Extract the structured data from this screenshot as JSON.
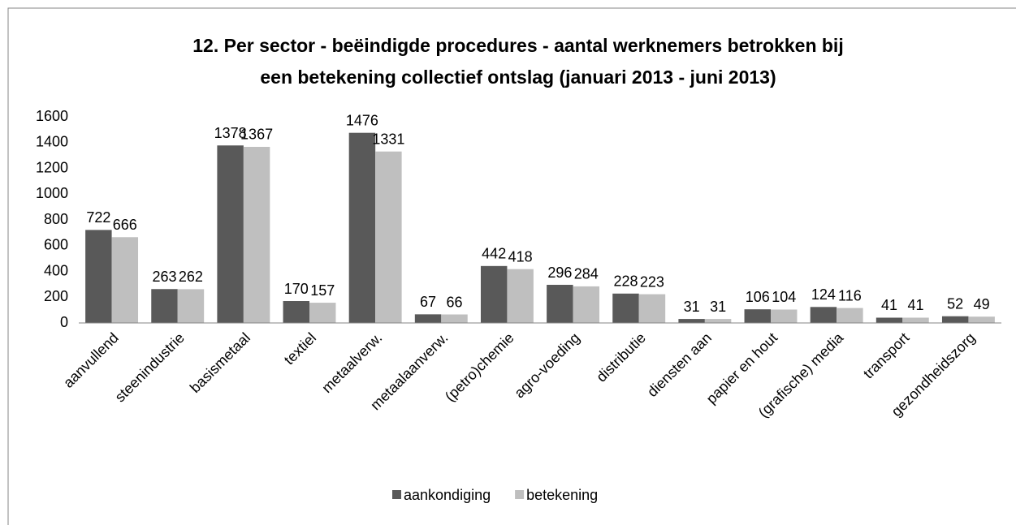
{
  "chart_data": {
    "type": "bar",
    "title": [
      "12. Per sector - beëindigde procedures - aantal werknemers betrokken bij",
      "een betekening collectief ontslag (januari 2013 - juni 2013)"
    ],
    "categories": [
      "aanvullend",
      "steenindustrie",
      "basismetaal",
      "textiel",
      "metaalverw.",
      "metaalaanverw.",
      "(petro)chemie",
      "agro-voeding",
      "distributie",
      "diensten aan",
      "papier en hout",
      "(grafische) media",
      "transport",
      "gezondheidszorg"
    ],
    "series": [
      {
        "name": "aankondiging",
        "color": "#595959",
        "values": [
          722,
          263,
          1378,
          170,
          1476,
          67,
          442,
          296,
          228,
          31,
          106,
          124,
          41,
          52
        ]
      },
      {
        "name": "betekening",
        "color": "#bfbfbf",
        "values": [
          666,
          262,
          1367,
          157,
          1331,
          66,
          418,
          284,
          223,
          31,
          104,
          116,
          41,
          49
        ]
      }
    ],
    "ylim": [
      0,
      1600
    ],
    "yticks": [
      0,
      200,
      400,
      600,
      800,
      1000,
      1200,
      1400,
      1600
    ],
    "grid": false,
    "legend": "bottom"
  }
}
